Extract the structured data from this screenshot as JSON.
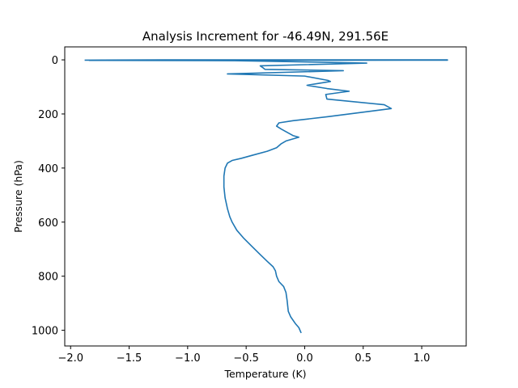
{
  "chart_data": {
    "type": "line",
    "title": "Analysis Increment for -46.49N, 291.56E",
    "xlabel": "Temperature (K)",
    "ylabel": "Pressure (hPa)",
    "xlim": [
      -2.05,
      1.38
    ],
    "ylim": [
      1058,
      -48
    ],
    "y_inverted": true,
    "grid": false,
    "x_ticks": [
      -2.0,
      -1.5,
      -1.0,
      -0.5,
      0.0,
      0.5,
      1.0
    ],
    "x_tick_labels": [
      "−2.0",
      "−1.5",
      "−1.0",
      "−0.5",
      "0.0",
      "0.5",
      "1.0"
    ],
    "y_ticks": [
      0,
      200,
      400,
      600,
      800,
      1000
    ],
    "y_tick_labels": [
      "0",
      "200",
      "400",
      "600",
      "800",
      "1000"
    ],
    "series": [
      {
        "color": "#1f77b4",
        "points": [
          [
            -1.88,
            1
          ],
          [
            -1.2,
            0
          ],
          [
            1.22,
            0
          ],
          [
            1.22,
            1
          ],
          [
            -1.84,
            2
          ],
          [
            -0.6,
            3
          ],
          [
            0.53,
            12
          ],
          [
            -0.38,
            22
          ],
          [
            -0.36,
            28
          ],
          [
            -0.34,
            35
          ],
          [
            0.33,
            40
          ],
          [
            -0.66,
            52
          ],
          [
            0.0,
            60
          ],
          [
            0.2,
            76
          ],
          [
            0.22,
            80
          ],
          [
            0.02,
            94
          ],
          [
            0.19,
            106
          ],
          [
            0.38,
            116
          ],
          [
            0.18,
            128
          ],
          [
            0.19,
            145
          ],
          [
            0.68,
            166
          ],
          [
            0.74,
            180
          ],
          [
            0.2,
            210
          ],
          [
            -0.1,
            225
          ],
          [
            -0.22,
            233
          ],
          [
            -0.24,
            245
          ],
          [
            -0.2,
            256
          ],
          [
            -0.1,
            280
          ],
          [
            -0.05,
            286
          ],
          [
            -0.16,
            300
          ],
          [
            -0.2,
            310
          ],
          [
            -0.24,
            325
          ],
          [
            -0.32,
            338
          ],
          [
            -0.44,
            352
          ],
          [
            -0.54,
            364
          ],
          [
            -0.62,
            372
          ],
          [
            -0.66,
            382
          ],
          [
            -0.68,
            400
          ],
          [
            -0.69,
            430
          ],
          [
            -0.69,
            470
          ],
          [
            -0.68,
            510
          ],
          [
            -0.66,
            550
          ],
          [
            -0.64,
            580
          ],
          [
            -0.62,
            600
          ],
          [
            -0.58,
            630
          ],
          [
            -0.52,
            660
          ],
          [
            -0.45,
            690
          ],
          [
            -0.38,
            720
          ],
          [
            -0.32,
            745
          ],
          [
            -0.27,
            765
          ],
          [
            -0.25,
            780
          ],
          [
            -0.24,
            800
          ],
          [
            -0.22,
            820
          ],
          [
            -0.18,
            838
          ],
          [
            -0.16,
            860
          ],
          [
            -0.15,
            890
          ],
          [
            -0.14,
            930
          ],
          [
            -0.12,
            950
          ],
          [
            -0.08,
            975
          ],
          [
            -0.05,
            990
          ],
          [
            -0.03,
            1010
          ]
        ]
      }
    ]
  }
}
